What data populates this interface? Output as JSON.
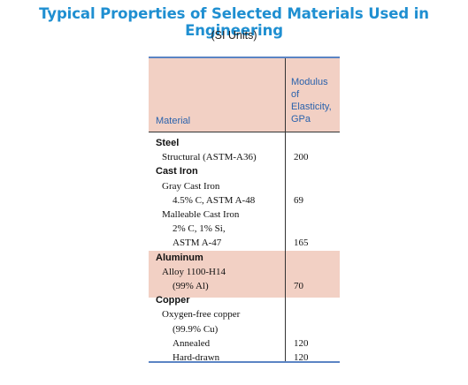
{
  "title": "Typical Properties of Selected Materials Used in Engineering",
  "subtitle": "(SI Units)",
  "table": {
    "headers": {
      "material": "Material",
      "modulus_lines": [
        "Modulus",
        "of",
        "Elasticity,",
        "GPa"
      ]
    },
    "rows": [
      {
        "material": "Steel",
        "kind": "category",
        "indent": 0,
        "value": ""
      },
      {
        "material": "Structural (ASTM-A36)",
        "kind": "sub",
        "indent": 1,
        "value": "200"
      },
      {
        "material": "Cast Iron",
        "kind": "category",
        "indent": 0,
        "value": ""
      },
      {
        "material": "Gray Cast Iron",
        "kind": "sub",
        "indent": 1,
        "value": ""
      },
      {
        "material": "4.5% C, ASTM A-48",
        "kind": "sub",
        "indent": 2,
        "value": "69"
      },
      {
        "material": "Malleable Cast Iron",
        "kind": "sub",
        "indent": 1,
        "value": ""
      },
      {
        "material": "2% C, 1% Si,",
        "kind": "sub",
        "indent": 2,
        "value": ""
      },
      {
        "material": "ASTM A-47",
        "kind": "sub",
        "indent": 2,
        "value": "165"
      },
      {
        "material": "Aluminum",
        "kind": "category",
        "indent": 0,
        "value": "",
        "shaded": true
      },
      {
        "material": "Alloy 1100-H14",
        "kind": "sub",
        "indent": 1,
        "value": "",
        "shaded": true
      },
      {
        "material": "(99% Al)",
        "kind": "sub",
        "indent": 2,
        "value": "70",
        "shaded": true
      },
      {
        "material": "Copper",
        "kind": "category",
        "indent": 0,
        "value": ""
      },
      {
        "material": "Oxygen-free copper",
        "kind": "sub",
        "indent": 1,
        "value": ""
      },
      {
        "material": "(99.9% Cu)",
        "kind": "sub",
        "indent": 2,
        "value": ""
      },
      {
        "material": "Annealed",
        "kind": "sub",
        "indent": 2,
        "value": "120"
      },
      {
        "material": "Hard-drawn",
        "kind": "sub",
        "indent": 2,
        "value": "120"
      }
    ]
  },
  "colors": {
    "title": "#1f8fd1",
    "header_text": "#2a62ac",
    "header_bg": "#f2d0c4",
    "rule": "#5b84c4"
  }
}
